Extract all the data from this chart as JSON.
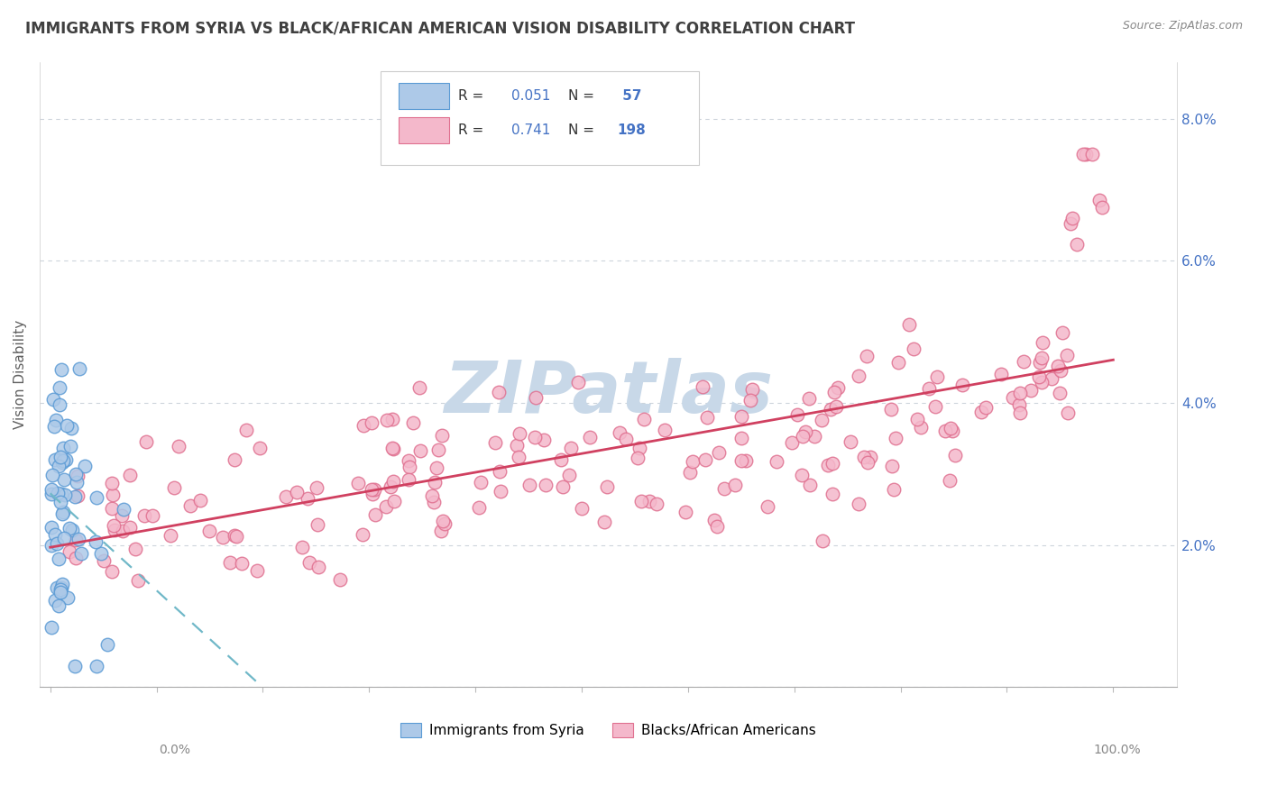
{
  "title": "IMMIGRANTS FROM SYRIA VS BLACK/AFRICAN AMERICAN VISION DISABILITY CORRELATION CHART",
  "source_text": "Source: ZipAtlas.com",
  "ylabel": "Vision Disability",
  "series1_label": "Immigrants from Syria",
  "series2_label": "Blacks/African Americans",
  "series1_R": 0.051,
  "series1_N": 57,
  "series2_R": 0.741,
  "series2_N": 198,
  "series1_color": "#adc9e8",
  "series1_edge_color": "#5b9bd5",
  "series2_color": "#f4b8cb",
  "series2_edge_color": "#e07090",
  "trendline1_color": "#70b8c8",
  "trendline2_color": "#d04060",
  "background_color": "#ffffff",
  "grid_color": "#c8d0d8",
  "title_color": "#404040",
  "ylabel_color": "#606060",
  "ytick_color": "#4472c4",
  "legend_label_color": "#333333",
  "legend_val_color": "#4472c4",
  "watermark_color": "#c8d8e8",
  "source_color": "#888888",
  "ylim_min": 0.0,
  "ylim_max": 0.088,
  "xlim_min": -0.01,
  "xlim_max": 1.06,
  "yticks": [
    0.0,
    0.02,
    0.04,
    0.06,
    0.08
  ],
  "ytick_labels": [
    "",
    "2.0%",
    "4.0%",
    "6.0%",
    "8.0%"
  ]
}
